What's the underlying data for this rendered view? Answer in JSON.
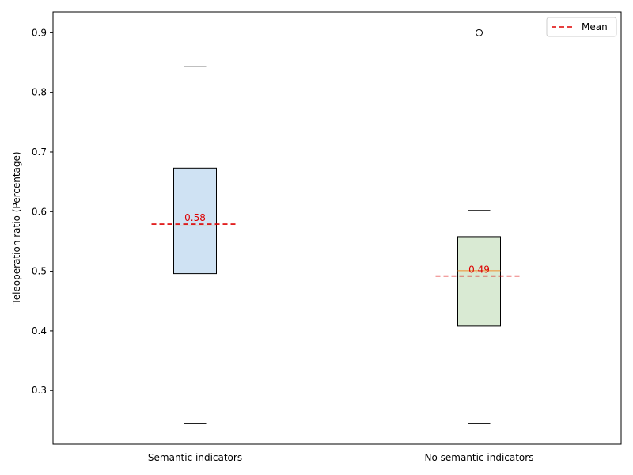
{
  "chart_data": {
    "type": "box",
    "ylabel": "Teleoperation ratio (Percentage)",
    "ylim": [
      0.21,
      0.935
    ],
    "yticks": [
      0.3,
      0.4,
      0.5,
      0.6,
      0.7,
      0.8,
      0.9
    ],
    "ytick_labels": [
      "0.3",
      "0.4",
      "0.5",
      "0.6",
      "0.7",
      "0.8",
      "0.9"
    ],
    "categories": [
      "Semantic indicators",
      "No semantic indicators"
    ],
    "boxes": [
      {
        "category": "Semantic indicators",
        "whisker_low": 0.245,
        "q1": 0.496,
        "median": 0.576,
        "q3": 0.673,
        "whisker_high": 0.843,
        "mean": 0.579,
        "mean_label": "0.58",
        "outliers": [],
        "fill": "#cfe2f3"
      },
      {
        "category": "No semantic indicators",
        "whisker_low": 0.245,
        "q1": 0.408,
        "median": 0.501,
        "q3": 0.558,
        "whisker_high": 0.602,
        "mean": 0.492,
        "mean_label": "0.49",
        "outliers": [
          0.9
        ],
        "fill": "#d9ead3"
      }
    ],
    "legend": {
      "position": "top-right",
      "entries": [
        {
          "label": "Mean",
          "style": "dashed",
          "color": "#dd0000"
        }
      ]
    },
    "colors": {
      "mean": "#dd0000",
      "median": "#f28e2b",
      "box_edge": "#000000",
      "mean_text": "#dd0000"
    },
    "grid": false
  }
}
